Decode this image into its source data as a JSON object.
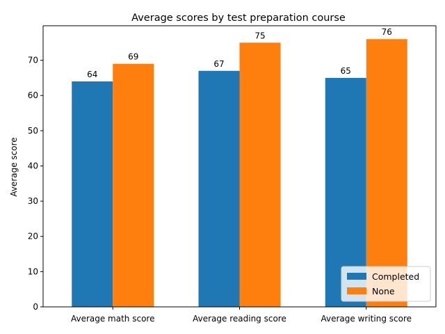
{
  "chart_data": {
    "type": "bar",
    "title": "Average scores by test preparation course",
    "xlabel": "",
    "ylabel": "Average score",
    "categories": [
      "Average math score",
      "Average reading score",
      "Average writing score"
    ],
    "series": [
      {
        "name": "Completed",
        "values": [
          64,
          67,
          65
        ],
        "color": "#1f77b4"
      },
      {
        "name": "None",
        "values": [
          69,
          75,
          76
        ],
        "color": "#ff7f0e"
      }
    ],
    "ylim": [
      0,
      79.8
    ],
    "yticks": [
      0,
      10,
      20,
      30,
      40,
      50,
      60,
      70
    ],
    "grid": false,
    "legend_position": "bottom-right"
  }
}
